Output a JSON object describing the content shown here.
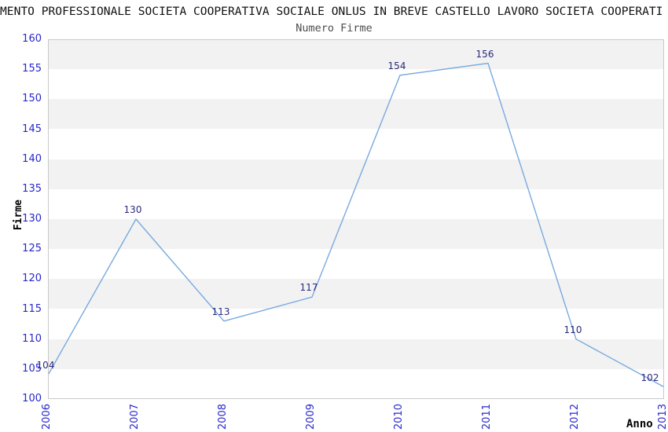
{
  "header": {
    "title": "MENTO PROFESSIONALE SOCIETA COOPERATIVA SOCIALE ONLUS IN BREVE CASTELLO LAVORO SOCIETA COOPERATI",
    "subtitle": "Numero Firme"
  },
  "chart_data": {
    "type": "line",
    "title": "Numero Firme",
    "categories": [
      "2006",
      "2007",
      "2008",
      "2009",
      "2010",
      "2011",
      "2012",
      "2013"
    ],
    "values": [
      104,
      130,
      113,
      117,
      154,
      156,
      110,
      102
    ],
    "xlabel": "Anno",
    "ylabel": "Firme",
    "ylim": [
      100,
      160
    ],
    "ytick_step": 5,
    "grid": "alternating-horizontal-bands",
    "legend": "none",
    "colors": {
      "line": "#78aade",
      "axis_tick_label": "#2727cc",
      "data_label": "#2b2b7d",
      "band_alt": "#f2f2f2",
      "band_main": "#ffffff",
      "plot_border": "#c9c9c9",
      "title": "#111111",
      "subtitle": "#4d4d4d",
      "axis_title": "#000000"
    }
  }
}
